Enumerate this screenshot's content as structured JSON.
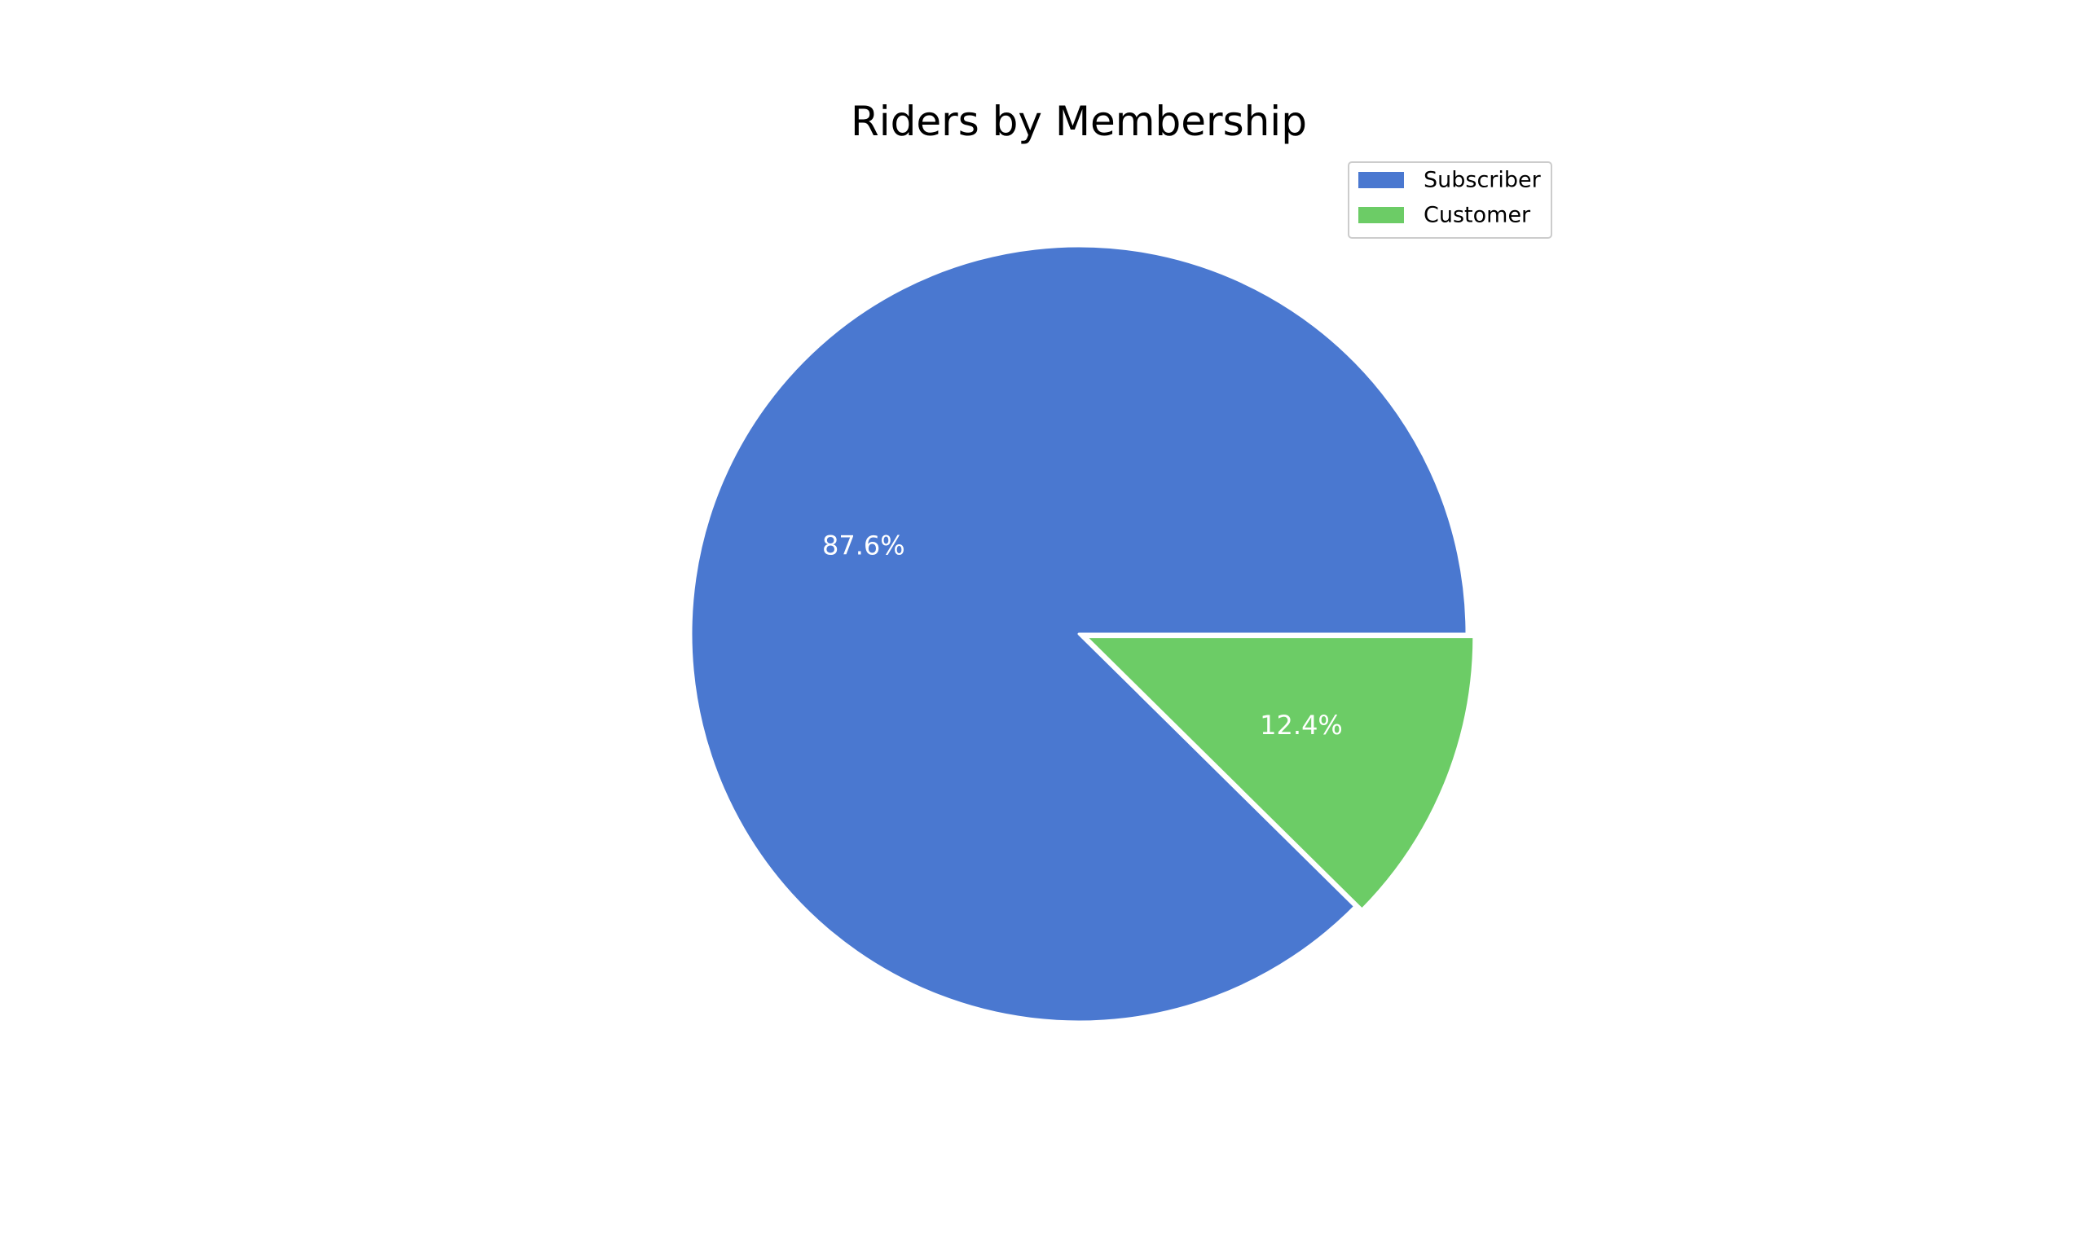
{
  "chart_data": {
    "type": "pie",
    "title": "Riders by Membership",
    "slices": [
      {
        "label": "Subscriber",
        "value": 87.6,
        "value_label": "87.6%",
        "color": "#4a78d0",
        "exploded": false
      },
      {
        "label": "Customer",
        "value": 12.4,
        "value_label": "12.4%",
        "color": "#6ccc66",
        "exploded": true
      }
    ],
    "start_angle": "0 degrees (3 o'clock), counterclockwise",
    "legend": {
      "position": "top-right",
      "entries": [
        "Subscriber",
        "Customer"
      ]
    },
    "wedge_edge_color": "#ffffff"
  }
}
